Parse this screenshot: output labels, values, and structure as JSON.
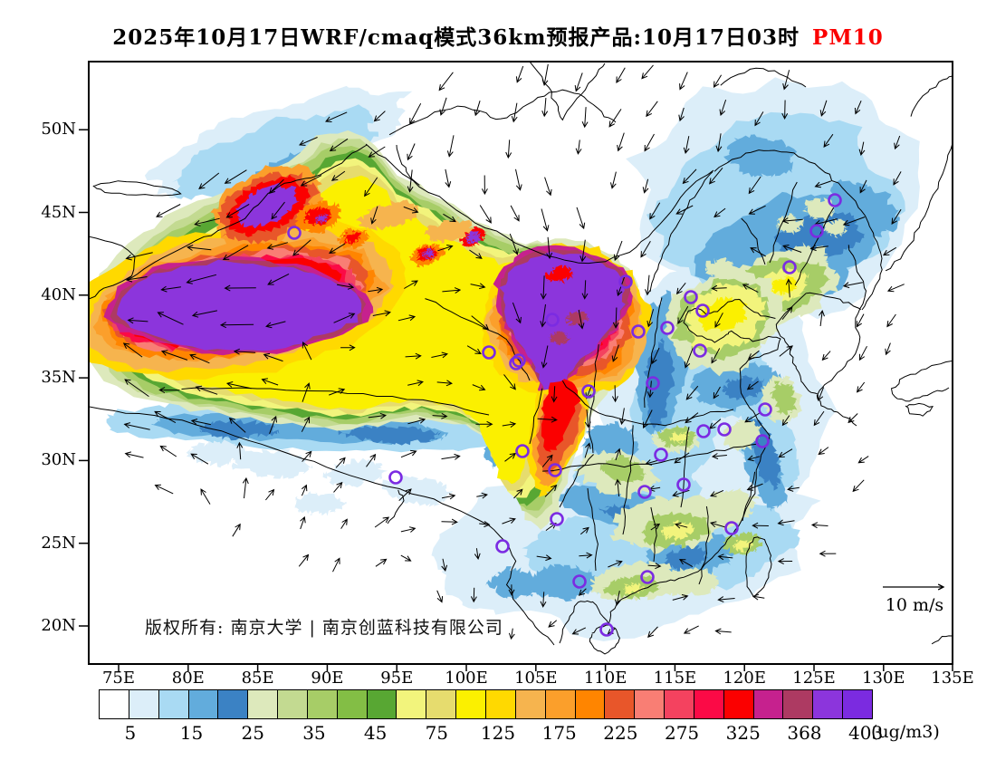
{
  "title": {
    "main": "2025年10月17日WRF/cmaq模式36km预报产品:10月17日03时",
    "pollutant": "PM10",
    "pollutant_color": "#fb0000"
  },
  "axes": {
    "lat_labels": [
      "50N",
      "45N",
      "40N",
      "35N",
      "30N",
      "25N",
      "20N"
    ],
    "lat_values": [
      50,
      45,
      40,
      35,
      30,
      25,
      20
    ],
    "lon_labels": [
      "75E",
      "80E",
      "85E",
      "90E",
      "95E",
      "100E",
      "105E",
      "110E",
      "115E",
      "120E",
      "125E",
      "130E",
      "135E"
    ],
    "lon_values": [
      75,
      80,
      85,
      90,
      95,
      100,
      105,
      110,
      115,
      120,
      125,
      130,
      135
    ]
  },
  "colorbar": {
    "unit": "(ug/m3)",
    "tick_labels": [
      "5",
      "15",
      "25",
      "35",
      "45",
      "75",
      "125",
      "175",
      "225",
      "275",
      "325",
      "368",
      "403"
    ],
    "colors": [
      "#FFFFFF",
      "#DCEEF9",
      "#A9DAF3",
      "#62ACDC",
      "#3B82C4",
      "#DDE9BC",
      "#C3DA91",
      "#A7CD67",
      "#83BE45",
      "#58A733",
      "#F2F47C",
      "#E6DC6E",
      "#FBF000",
      "#FFD900",
      "#F6B44E",
      "#FB9F2B",
      "#FF8500",
      "#E8562A",
      "#F97E74",
      "#F4425F",
      "#FB0A46",
      "#FB0000",
      "#C6218E",
      "#AD3A62",
      "#8C35DC",
      "#7B2BE0"
    ]
  },
  "wind_legend": {
    "label": "10 m/s"
  },
  "copyright": {
    "text": "版权所有: 南京大学 | 南京创蓝科技有限公司"
  },
  "map": {
    "marker_color": "#7B2BE2",
    "city_markers": [
      [
        325,
        257
      ],
      [
        691,
        311
      ],
      [
        763,
        328
      ],
      [
        776,
        343
      ],
      [
        737,
        362
      ],
      [
        705,
        366
      ],
      [
        610,
        353
      ],
      [
        573,
        398
      ],
      [
        540,
        389
      ],
      [
        570,
        401
      ],
      [
        650,
        432
      ],
      [
        721,
        423
      ],
      [
        773,
        387
      ],
      [
        777,
        476
      ],
      [
        800,
        474
      ],
      [
        842,
        487
      ],
      [
        845,
        452
      ],
      [
        872,
        295
      ],
      [
        902,
        255
      ],
      [
        922,
        221
      ],
      [
        730,
        502
      ],
      [
        755,
        535
      ],
      [
        712,
        543
      ],
      [
        808,
        583
      ],
      [
        615,
        573
      ],
      [
        613,
        519
      ],
      [
        577,
        498
      ],
      [
        555,
        603
      ],
      [
        640,
        642
      ],
      [
        715,
        637
      ],
      [
        670,
        695
      ],
      [
        437,
        527
      ]
    ]
  }
}
